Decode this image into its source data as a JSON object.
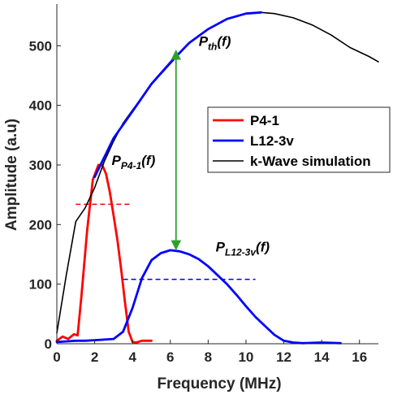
{
  "chart_data": {
    "type": "line",
    "xlabel": "Frequency (MHz)",
    "ylabel": "Amplitude (a.u)",
    "xlim": [
      0,
      17
    ],
    "ylim": [
      0,
      570
    ],
    "xticks": [
      0,
      2,
      4,
      6,
      8,
      10,
      12,
      14,
      16
    ],
    "yticks": [
      0,
      100,
      200,
      300,
      400,
      500
    ],
    "grid": false,
    "legend_position": "right",
    "series": [
      {
        "name": "P4-1",
        "color": "#ff0000",
        "width": 2.8,
        "x": [
          0,
          0.3,
          0.6,
          0.9,
          1.1,
          1.3,
          1.6,
          1.9,
          2.2,
          2.4,
          2.6,
          2.8,
          3.0,
          3.2,
          3.4,
          3.6,
          3.8,
          4.0,
          4.2,
          4.5,
          5.0
        ],
        "y": [
          5,
          12,
          8,
          16,
          14,
          80,
          190,
          275,
          300,
          300,
          285,
          255,
          215,
          175,
          125,
          70,
          20,
          3,
          2,
          5,
          5
        ]
      },
      {
        "name": "L12-3v",
        "color": "#0000ff",
        "width": 2.8,
        "x": [
          0,
          0.5,
          1.0,
          1.5,
          2.0,
          2.5,
          3.0,
          3.5,
          4.0,
          4.5,
          5.0,
          5.5,
          6.0,
          6.5,
          7.0,
          7.5,
          8.0,
          8.5,
          9.0,
          9.5,
          10.0,
          10.5,
          11.0,
          11.5,
          12.0,
          12.5,
          13.0,
          14.0,
          15.0
        ],
        "y": [
          3,
          4,
          5,
          5,
          6,
          7,
          8,
          20,
          60,
          110,
          140,
          152,
          157,
          155,
          150,
          142,
          130,
          115,
          100,
          82,
          63,
          45,
          30,
          15,
          5,
          2,
          1,
          2,
          1
        ]
      },
      {
        "name": "k-Wave simulation",
        "color": "#000000",
        "width": 1.6,
        "x": [
          0,
          0.5,
          1.0,
          1.5,
          2.0,
          2.5,
          3.0,
          3.5,
          4.0,
          5.0,
          6.0,
          7.0,
          8.0,
          9.0,
          10.0,
          10.8,
          11.5,
          12.5,
          13.5,
          14.5,
          15.5,
          16.5,
          17.0
        ],
        "y": [
          18,
          115,
          205,
          228,
          262,
          305,
          340,
          370,
          392,
          435,
          470,
          505,
          528,
          545,
          554,
          556,
          554,
          547,
          535,
          518,
          497,
          482,
          473
        ]
      }
    ],
    "overlays": [
      {
        "name": "P_th(f)",
        "color": "#0000ff",
        "width": 2.8,
        "x": [
          2.0,
          3.0,
          4.0,
          5.0,
          6.0,
          7.0,
          8.0,
          9.0,
          10.0,
          10.8
        ],
        "y": [
          280,
          345,
          390,
          436,
          472,
          505,
          528,
          545,
          554,
          556
        ]
      }
    ],
    "reference_lines": [
      {
        "label": "P4-1",
        "color": "#ff0000",
        "y": 234,
        "x": [
          1.0,
          3.9
        ]
      },
      {
        "label": "L12-3v",
        "color": "#0000ff",
        "y": 108,
        "x": [
          3.5,
          10.5
        ]
      }
    ],
    "double_arrow": {
      "color": "#2ca02c",
      "x": 6.3,
      "y": [
        490,
        160
      ]
    },
    "annotations": [
      {
        "main": "P",
        "sub": "th",
        "suffix": "(f)",
        "x": 7.5,
        "y": 500
      },
      {
        "main": "P",
        "sub": "P4-1",
        "suffix": "(f)",
        "x": 2.9,
        "y": 300
      },
      {
        "main": "P",
        "sub": "L12-3v",
        "suffix": "(f)",
        "x": 8.4,
        "y": 155
      }
    ]
  }
}
